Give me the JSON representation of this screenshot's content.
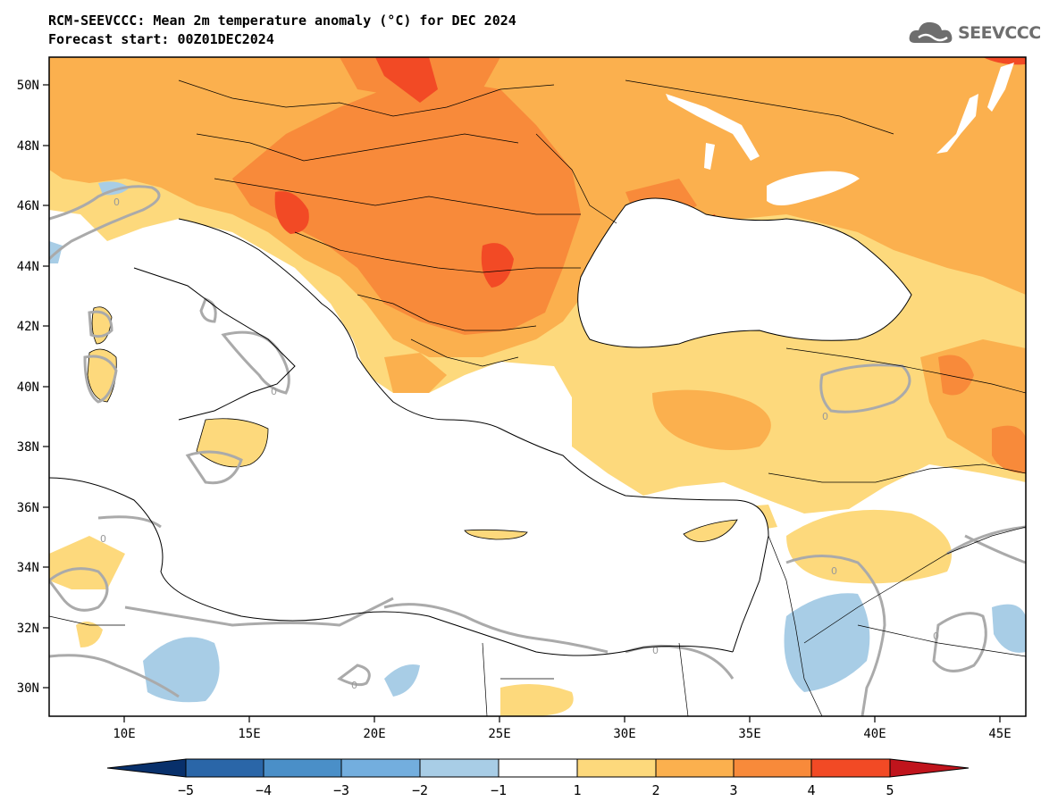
{
  "title_line1": "RCM-SEEVCCC: Mean 2m temperature anomaly (°C) for DEC 2024",
  "title_line2": "Forecast start: 00Z01DEC2024",
  "logo_text": "SEEVCCC",
  "logo_icon": "cloud-icon",
  "map": {
    "lon_range": [
      7,
      46
    ],
    "lat_range": [
      29,
      51
    ],
    "lon_ticks": [
      "10E",
      "15E",
      "20E",
      "25E",
      "30E",
      "35E",
      "40E",
      "45E"
    ],
    "lat_ticks": [
      "50N",
      "48N",
      "46N",
      "44N",
      "42N",
      "40N",
      "38N",
      "36N",
      "34N",
      "32N",
      "30N"
    ],
    "contour_label": "0"
  },
  "colorbar": {
    "labels": [
      "−5",
      "−4",
      "−3",
      "−2",
      "−1",
      "1",
      "2",
      "3",
      "4",
      "5"
    ],
    "colors": [
      "#08306b",
      "#2a66a8",
      "#4a8fc8",
      "#73aede",
      "#a8cde6",
      "#ffffff",
      "#fdd97c",
      "#fbb04e",
      "#f88a3a",
      "#f24a25",
      "#c0141c"
    ]
  },
  "colors": {
    "anom_1_2": "#fdd97c",
    "anom_2_3": "#fbb04e",
    "anom_3_4": "#f88a3a",
    "anom_4_5": "#f24a25",
    "anom_neg_1_2": "#a8cde6",
    "zero_contour": "#aaaaaa"
  }
}
